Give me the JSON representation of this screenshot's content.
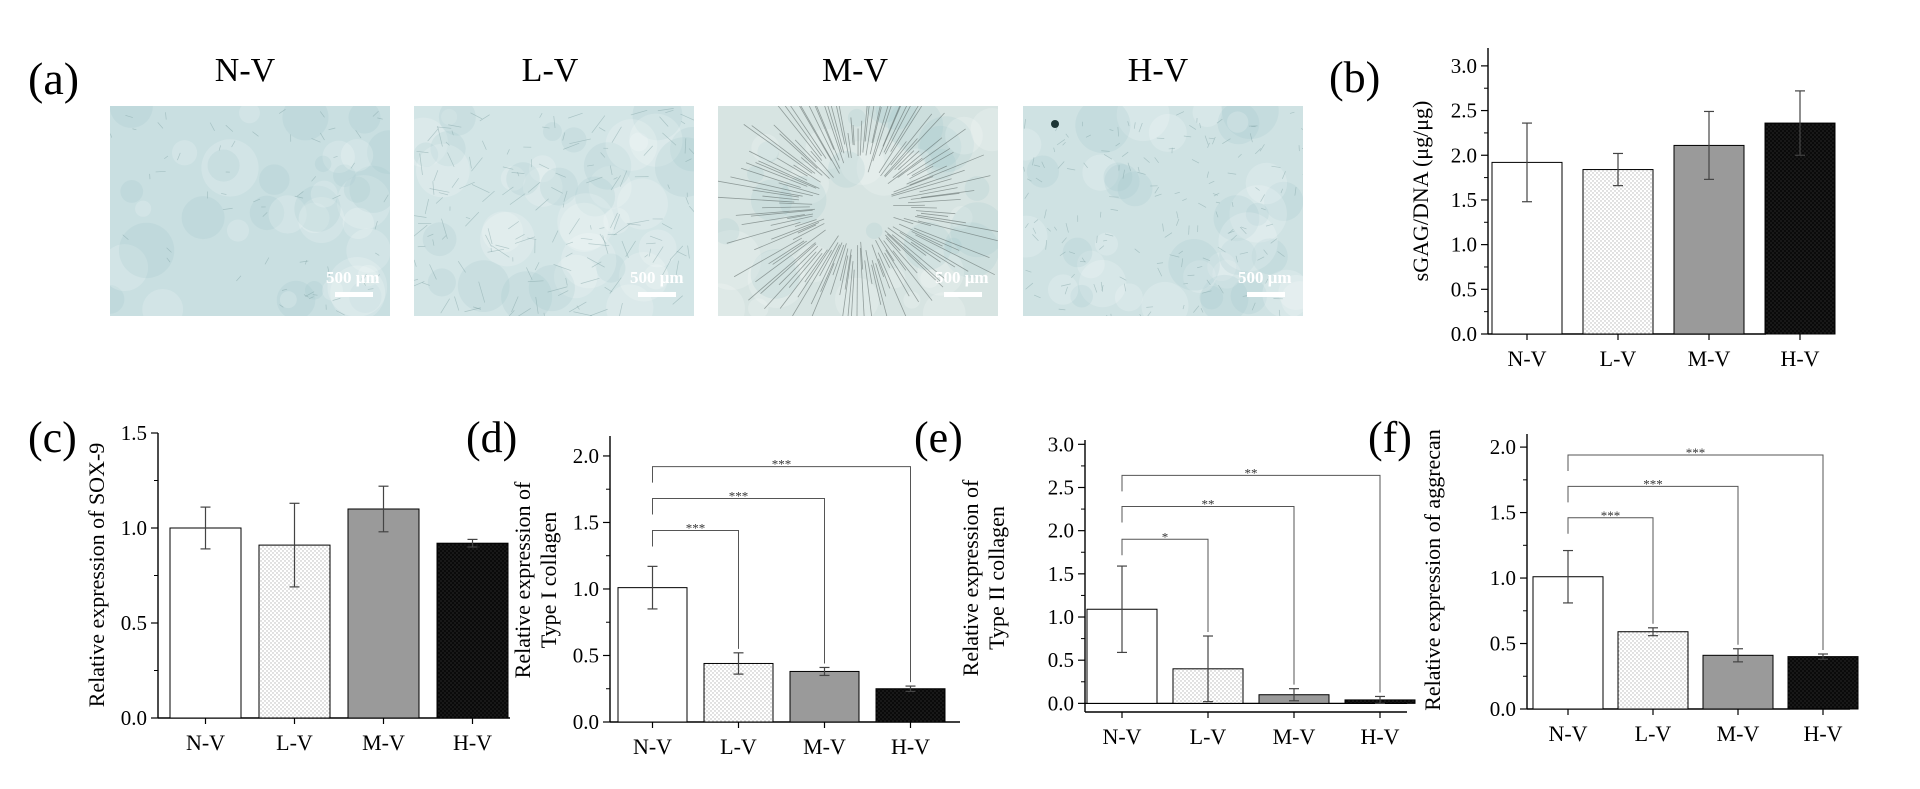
{
  "panel_a": {
    "label": "(a)",
    "images": [
      {
        "title": "N-V",
        "scale_label": "500 μm",
        "tint": "#c9dfe1",
        "texture": "smooth"
      },
      {
        "title": "L-V",
        "scale_label": "500 μm",
        "tint": "#d3e5e6",
        "texture": "fibrous"
      },
      {
        "title": "M-V",
        "scale_label": "500 μm",
        "tint": "#d7e4e2",
        "texture": "radial"
      },
      {
        "title": "H-V",
        "scale_label": "500 μm",
        "tint": "#cfe2e3",
        "texture": "speckled"
      }
    ]
  },
  "chart_data": [
    {
      "id": "b",
      "panel_label": "(b)",
      "type": "bar",
      "categories": [
        "N-V",
        "L-V",
        "M-V",
        "H-V"
      ],
      "values": [
        1.92,
        1.84,
        2.11,
        2.36
      ],
      "errors": [
        0.44,
        0.18,
        0.38,
        0.36
      ],
      "fills": [
        "white",
        "dots",
        "gray",
        "black"
      ],
      "ylabel_lines": [
        "sGAG/DNA (μg/μg)"
      ],
      "ylim": [
        0,
        3.2
      ],
      "yticks": [
        "0.0",
        "0.5",
        "1.0",
        "1.5",
        "2.0",
        "2.5",
        "3.0"
      ],
      "ytick_values": [
        0,
        0.5,
        1.0,
        1.5,
        2.0,
        2.5,
        3.0
      ],
      "significance": []
    },
    {
      "id": "c",
      "panel_label": "(c)",
      "type": "bar",
      "categories": [
        "N-V",
        "L-V",
        "M-V",
        "H-V"
      ],
      "values": [
        1.0,
        0.91,
        1.1,
        0.92
      ],
      "errors": [
        0.11,
        0.22,
        0.12,
        0.02
      ],
      "fills": [
        "white",
        "dots",
        "gray",
        "black"
      ],
      "ylabel_lines": [
        "Relative expression of  SOX-9"
      ],
      "ylim": [
        0,
        1.5
      ],
      "yticks": [
        "0.0",
        "0.5",
        "1.0",
        "1.5"
      ],
      "ytick_values": [
        0,
        0.5,
        1.0,
        1.5
      ],
      "significance": []
    },
    {
      "id": "d",
      "panel_label": "(d)",
      "type": "bar",
      "categories": [
        "N-V",
        "L-V",
        "M-V",
        "H-V"
      ],
      "values": [
        1.01,
        0.44,
        0.38,
        0.25
      ],
      "errors": [
        0.16,
        0.08,
        0.03,
        0.02
      ],
      "fills": [
        "white",
        "dots",
        "gray",
        "black"
      ],
      "ylabel_lines": [
        "Relative expression of",
        "Type I collagen"
      ],
      "ylim": [
        0,
        2.15
      ],
      "yticks": [
        "0.0",
        "0.5",
        "1.0",
        "1.5",
        "2.0"
      ],
      "ytick_values": [
        0,
        0.5,
        1.0,
        1.5,
        2.0
      ],
      "significance": [
        {
          "from": 0,
          "to": 1,
          "y": 1.44,
          "label": "***"
        },
        {
          "from": 0,
          "to": 2,
          "y": 1.68,
          "label": "***"
        },
        {
          "from": 0,
          "to": 3,
          "y": 1.92,
          "label": "***"
        }
      ]
    },
    {
      "id": "e",
      "panel_label": "(e)",
      "type": "bar",
      "categories": [
        "N-V",
        "L-V",
        "M-V",
        "H-V"
      ],
      "values": [
        1.09,
        0.4,
        0.1,
        0.04
      ],
      "errors": [
        0.5,
        0.38,
        0.07,
        0.04
      ],
      "fills": [
        "white",
        "dots",
        "gray",
        "black"
      ],
      "ylabel_lines": [
        "Relative expression of",
        "Type II collagen"
      ],
      "ylim": [
        -0.1,
        3.05
      ],
      "yticks": [
        "0.0",
        "0.5",
        "1.0",
        "1.5",
        "2.0",
        "2.5",
        "3.0"
      ],
      "ytick_values": [
        0,
        0.5,
        1.0,
        1.5,
        2.0,
        2.5,
        3.0
      ],
      "significance": [
        {
          "from": 0,
          "to": 1,
          "y": 1.9,
          "label": "*"
        },
        {
          "from": 0,
          "to": 2,
          "y": 2.28,
          "label": "**"
        },
        {
          "from": 0,
          "to": 3,
          "y": 2.64,
          "label": "**"
        }
      ]
    },
    {
      "id": "f",
      "panel_label": "(f)",
      "type": "bar",
      "categories": [
        "N-V",
        "L-V",
        "M-V",
        "H-V"
      ],
      "values": [
        1.01,
        0.59,
        0.41,
        0.4
      ],
      "errors": [
        0.2,
        0.03,
        0.05,
        0.02
      ],
      "fills": [
        "white",
        "dots",
        "gray",
        "black"
      ],
      "ylabel_lines": [
        "Relative expression of  aggrecan"
      ],
      "ylim": [
        0,
        2.1
      ],
      "yticks": [
        "0.0",
        "0.5",
        "1.0",
        "1.5",
        "2.0"
      ],
      "ytick_values": [
        0,
        0.5,
        1.0,
        1.5,
        2.0
      ],
      "significance": [
        {
          "from": 0,
          "to": 1,
          "y": 1.46,
          "label": "***"
        },
        {
          "from": 0,
          "to": 2,
          "y": 1.7,
          "label": "***"
        },
        {
          "from": 0,
          "to": 3,
          "y": 1.94,
          "label": "***"
        }
      ]
    }
  ]
}
